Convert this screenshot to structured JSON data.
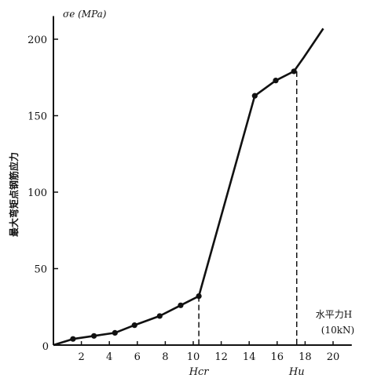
{
  "chart_data": {
    "type": "line",
    "title": "",
    "ylabel": "最大弯矩点钢筋应力",
    "yunit_label": "σe (MPa)",
    "xlabel_line1": "水平力H",
    "xlabel_line2": "(10kN)",
    "xlim": [
      0,
      21
    ],
    "ylim": [
      0,
      210
    ],
    "x_ticks": [
      2,
      4,
      6,
      8,
      10,
      12,
      14,
      16,
      18,
      20
    ],
    "x_tick_labels": [
      "2",
      "4",
      "6",
      "8",
      "10",
      "12",
      "14",
      "16",
      "18",
      "20"
    ],
    "y_ticks": [
      50,
      100,
      150,
      200
    ],
    "y_tick_labels": [
      "50",
      "100",
      "150",
      "200"
    ],
    "origin_label": "0",
    "grid": false,
    "series": [
      {
        "x": [
          0,
          1.4,
          2.9,
          4.4,
          5.8,
          7.6,
          9.1,
          10.4,
          14.4,
          15.9,
          17.2,
          17.9,
          19.3
        ],
        "y": [
          0,
          4,
          6,
          8,
          13,
          19,
          26,
          32,
          163,
          173,
          179,
          188,
          207
        ],
        "markers": [
          false,
          true,
          true,
          true,
          true,
          true,
          true,
          true,
          true,
          true,
          true,
          false,
          false
        ]
      }
    ],
    "reference_lines": [
      {
        "x": 10.4,
        "y_top": 32,
        "label": "Hcr"
      },
      {
        "x": 17.4,
        "y_top": 179,
        "label": "Hu"
      }
    ]
  }
}
